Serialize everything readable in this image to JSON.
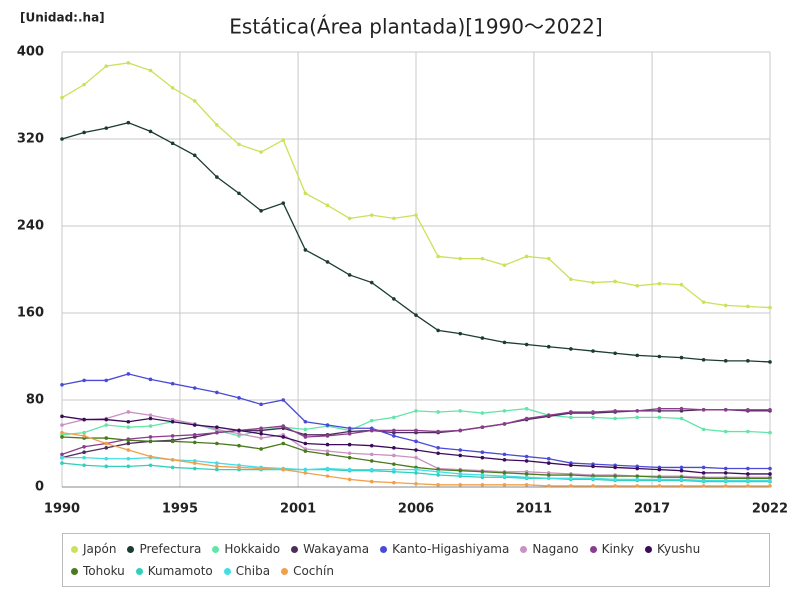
{
  "chart_data": {
    "type": "line",
    "title": "Estática(Área plantada)[1990〜2022]",
    "unit_label": "[Unidad:.ha]",
    "x": [
      1990,
      1991,
      1992,
      1993,
      1994,
      1995,
      1996,
      1997,
      1998,
      1999,
      2000,
      2001,
      2002,
      2003,
      2004,
      2005,
      2006,
      2007,
      2008,
      2009,
      2010,
      2011,
      2012,
      2013,
      2014,
      2015,
      2016,
      2017,
      2018,
      2019,
      2020,
      2021,
      2022
    ],
    "xlim": [
      1990,
      2022
    ],
    "xticks": [
      1990,
      {
        "value": 1995.33,
        "label": "1995"
      },
      {
        "value": 2000.67,
        "label": "2001"
      },
      2006,
      {
        "value": 2011.33,
        "label": "2011"
      },
      {
        "value": 2016.67,
        "label": "2017"
      },
      2022
    ],
    "ylim": [
      0,
      400
    ],
    "yticks": [
      0,
      80,
      160,
      240,
      320,
      400
    ],
    "grid": true,
    "series": [
      {
        "name": "Japón",
        "color": "#cde05a",
        "values": [
          358,
          370,
          387,
          390,
          383,
          367,
          355,
          333,
          315,
          308,
          319,
          270,
          259,
          247,
          250,
          247,
          250,
          212,
          210,
          210,
          204,
          212,
          210,
          191,
          188,
          189,
          185,
          187,
          186,
          170,
          167,
          166,
          165
        ]
      },
      {
        "name": "Prefectura",
        "color": "#1b3b33",
        "values": [
          320,
          326,
          330,
          335,
          327,
          316,
          305,
          285,
          270,
          254,
          261,
          218,
          207,
          195,
          188,
          173,
          158,
          144,
          141,
          137,
          133,
          131,
          129,
          127,
          125,
          123,
          121,
          120,
          119,
          117,
          116,
          116,
          115
        ]
      },
      {
        "name": "Hokkaido",
        "color": "#62e6a8",
        "values": [
          48,
          50,
          57,
          55,
          56,
          60,
          58,
          52,
          47,
          52,
          55,
          53,
          56,
          52,
          61,
          64,
          70,
          69,
          70,
          68,
          70,
          72,
          66,
          64,
          64,
          63,
          64,
          64,
          63,
          53,
          51,
          51,
          50
        ]
      },
      {
        "name": "Wakayama",
        "color": "#4d2d5c",
        "values": [
          27,
          32,
          36,
          40,
          42,
          43,
          46,
          50,
          52,
          52,
          54,
          48,
          48,
          51,
          52,
          50,
          50,
          50,
          52,
          55,
          58,
          62,
          65,
          68,
          68,
          69,
          70,
          70,
          70,
          71,
          71,
          70,
          70
        ]
      },
      {
        "name": "Kanto-Higashiyama",
        "color": "#4a4ad8",
        "values": [
          94,
          98,
          98,
          104,
          99,
          95,
          91,
          87,
          82,
          76,
          80,
          60,
          57,
          54,
          54,
          47,
          42,
          36,
          34,
          32,
          30,
          28,
          26,
          22,
          21,
          20,
          19,
          18,
          18,
          18,
          17,
          17,
          17
        ]
      },
      {
        "name": "Nagano",
        "color": "#c892c2",
        "values": [
          57,
          62,
          63,
          69,
          66,
          62,
          58,
          53,
          49,
          45,
          48,
          35,
          33,
          31,
          30,
          29,
          27,
          17,
          16,
          15,
          14,
          14,
          13,
          12,
          11,
          11,
          10,
          10,
          10,
          9,
          9,
          9,
          9
        ]
      },
      {
        "name": "Kinky",
        "color": "#8c3c8c",
        "values": [
          30,
          37,
          40,
          44,
          46,
          47,
          48,
          50,
          52,
          54,
          56,
          46,
          47,
          49,
          52,
          52,
          52,
          51,
          52,
          55,
          58,
          63,
          66,
          69,
          69,
          70,
          70,
          72,
          72,
          71,
          71,
          71,
          71
        ]
      },
      {
        "name": "Kyushu",
        "color": "#3a0c5a",
        "values": [
          65,
          62,
          62,
          60,
          63,
          60,
          57,
          55,
          52,
          49,
          46,
          40,
          39,
          39,
          38,
          36,
          34,
          31,
          29,
          27,
          25,
          24,
          22,
          20,
          19,
          18,
          17,
          16,
          15,
          13,
          13,
          12,
          12
        ]
      },
      {
        "name": "Tohoku",
        "color": "#4a7a1c",
        "values": [
          46,
          45,
          45,
          43,
          42,
          42,
          41,
          40,
          38,
          35,
          40,
          33,
          30,
          27,
          24,
          21,
          18,
          16,
          15,
          14,
          13,
          12,
          11,
          11,
          10,
          10,
          10,
          9,
          9,
          8,
          8,
          8,
          8
        ]
      },
      {
        "name": "Kumamoto",
        "color": "#30d0bc",
        "values": [
          22,
          20,
          19,
          19,
          20,
          18,
          17,
          16,
          16,
          16,
          16,
          16,
          16,
          15,
          15,
          14,
          13,
          11,
          10,
          9,
          9,
          8,
          8,
          7,
          7,
          6,
          6,
          6,
          6,
          5,
          5,
          5,
          5
        ]
      },
      {
        "name": "Chiba",
        "color": "#44dde6",
        "values": [
          27,
          27,
          26,
          26,
          27,
          25,
          24,
          22,
          20,
          18,
          17,
          16,
          17,
          16,
          16,
          16,
          16,
          14,
          12,
          11,
          10,
          9,
          8,
          8,
          8,
          7,
          7,
          7,
          7,
          6,
          6,
          6,
          6
        ]
      },
      {
        "name": "Cochín",
        "color": "#f0a04c",
        "values": [
          50,
          47,
          40,
          34,
          28,
          25,
          22,
          19,
          18,
          17,
          16,
          13,
          10,
          7,
          5,
          4,
          3,
          2,
          2,
          2,
          2,
          2,
          1,
          1,
          1,
          1,
          1,
          1,
          1,
          1,
          1,
          1,
          1
        ]
      }
    ]
  }
}
